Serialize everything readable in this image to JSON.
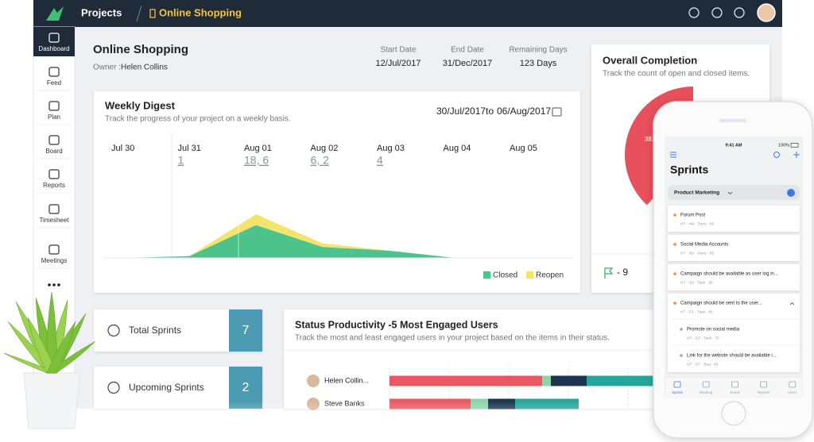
{
  "topbar": {
    "section": "Projects",
    "project": "Online Shopping"
  },
  "sidebar": {
    "items": [
      "Dashboard",
      "Feed",
      "Plan",
      "Board",
      "Reports",
      "Timesheet",
      "Meetings"
    ]
  },
  "project": {
    "title": "Online Shopping",
    "owner_label": "Owner :",
    "owner": "Helen Collins",
    "dates": [
      {
        "label": "Start Date",
        "value": "12/Jul/2017"
      },
      {
        "label": "End Date",
        "value": "31/Dec/2017"
      },
      {
        "label": "Remaining Days",
        "value": "123 Days"
      }
    ]
  },
  "weekly_range": {
    "from": "30/Jul/2017",
    "to_label": "to",
    "to": "06/Aug/2017"
  },
  "chart_data": [
    {
      "type": "area",
      "title": "Weekly Digest",
      "subtitle": "Track the progress of your project on a weekly basis.",
      "categories": [
        "Jul 30",
        "Jul 31",
        "Aug 01",
        "Aug 02",
        "Aug 03",
        "Aug 04",
        "Aug 05"
      ],
      "value_labels": [
        null,
        "1",
        "18, 6",
        "6, 2",
        "4",
        null,
        null
      ],
      "series": [
        {
          "name": "Closed",
          "color": "#4cc38a",
          "values": [
            null,
            1,
            18,
            6,
            4,
            null,
            null
          ]
        },
        {
          "name": "Reopen",
          "color": "#f3e46c",
          "values": [
            null,
            null,
            6,
            2,
            null,
            null,
            null
          ]
        }
      ],
      "legend": "bottom-right"
    },
    {
      "type": "pie",
      "title": "Overall Completion",
      "subtitle": "Track the count of open and closed items.",
      "values": [
        38.2
      ],
      "value_labels": [
        "38.2%"
      ],
      "color": "#e8505b"
    },
    {
      "type": "bar",
      "orientation": "horizontal",
      "title": "Status Productivity -5 Most Engaged Users",
      "subtitle": "Track the most and least engaged users in your project based on the items in their status.",
      "categories": [
        "Helen Collin...",
        "Steve Banks"
      ],
      "series": [
        {
          "color": "#ea5863",
          "values": [
            192,
            102
          ]
        },
        {
          "color": "#8fd3a8",
          "values": [
            11,
            22
          ]
        },
        {
          "color": "#1c3550",
          "values": [
            45,
            34
          ]
        },
        {
          "color": "#26a69a",
          "values": [
            100,
            80
          ]
        }
      ]
    }
  ],
  "overall_flag": "- 9",
  "sprints": [
    {
      "label": "Total Sprints",
      "count": "7"
    },
    {
      "label": "Upcoming Sprints",
      "count": "2"
    }
  ],
  "phone": {
    "time": "9:41 AM",
    "battery": "100%",
    "title": "Sprints",
    "filter": "Product Marketing",
    "items": [
      {
        "title": "Forum Post",
        "meta": "H7 · I49 · Story · 65"
      },
      {
        "title": "Social Media Accounts",
        "meta": "H7 · I60 · Story · 65"
      },
      {
        "title": "Campaign should be available as user log in...",
        "meta": "H7 · I20 · Task · 65"
      },
      {
        "title": "Campaign should be sent to the user...",
        "meta": "H7 · I71 · Task · 65",
        "children": [
          {
            "title": "Promote on social media",
            "meta": "H7 · I27 · Task · 75"
          },
          {
            "title": "Link for the website should be available i...",
            "meta": "H7 · I37 · Bug · 65"
          }
        ]
      }
    ],
    "tabs": [
      "Sprints",
      "Backlog",
      "Board",
      "Reports",
      "Users"
    ]
  }
}
